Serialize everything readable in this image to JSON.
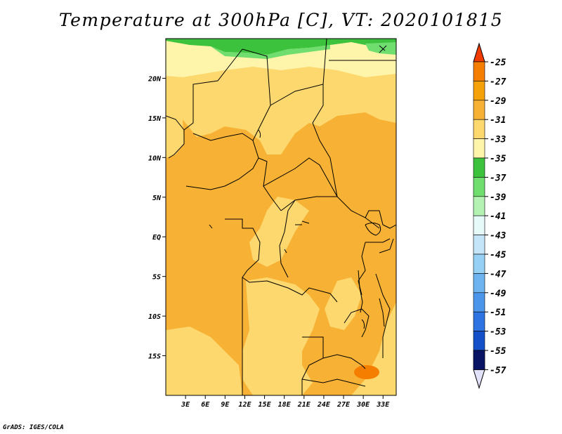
{
  "title": "Temperature at 300hPa [C], VT: 2020101815",
  "footer": "GrADS: IGES/COLA",
  "map": {
    "lon_range": [
      0,
      35
    ],
    "lat_range": [
      -20,
      25
    ],
    "lat_ticks": [
      {
        "value": 20,
        "label": "20N"
      },
      {
        "value": 15,
        "label": "15N"
      },
      {
        "value": 10,
        "label": "10N"
      },
      {
        "value": 5,
        "label": "5N"
      },
      {
        "value": 0,
        "label": "EQ"
      },
      {
        "value": -5,
        "label": "5S"
      },
      {
        "value": -10,
        "label": "10S"
      },
      {
        "value": -15,
        "label": "15S"
      }
    ],
    "lon_ticks": [
      {
        "value": 3,
        "label": "3E"
      },
      {
        "value": 6,
        "label": "6E"
      },
      {
        "value": 9,
        "label": "9E"
      },
      {
        "value": 12,
        "label": "12E"
      },
      {
        "value": 15,
        "label": "15E"
      },
      {
        "value": 18,
        "label": "18E"
      },
      {
        "value": 21,
        "label": "21E"
      },
      {
        "value": 24,
        "label": "24E"
      },
      {
        "value": 27,
        "label": "27E"
      },
      {
        "value": 30,
        "label": "30E"
      },
      {
        "value": 33,
        "label": "33E"
      }
    ]
  },
  "colorbar": {
    "levels": [
      {
        "label": "-25",
        "color": "#f05a00"
      },
      {
        "label": "-27",
        "color": "#f57d00"
      },
      {
        "label": "-29",
        "color": "#f5a20a"
      },
      {
        "label": "-31",
        "color": "#f7b235"
      },
      {
        "label": "-33",
        "color": "#fcd86e"
      },
      {
        "label": "-35",
        "color": "#fef4aa"
      },
      {
        "label": "-37",
        "color": "#3cc23c"
      },
      {
        "label": "-39",
        "color": "#6fde6f"
      },
      {
        "label": "-41",
        "color": "#b3f2b3"
      },
      {
        "label": "-43",
        "color": "#e6fafa"
      },
      {
        "label": "-45",
        "color": "#c4e5f7"
      },
      {
        "label": "-47",
        "color": "#96d0f5"
      },
      {
        "label": "-49",
        "color": "#6eb4f0"
      },
      {
        "label": "-51",
        "color": "#4b96eb"
      },
      {
        "label": "-53",
        "color": "#2d73e1"
      },
      {
        "label": "-55",
        "color": "#1450c8"
      },
      {
        "label": "-57",
        "color": "#0a2d9b"
      }
    ],
    "top_color": "#f03c00",
    "bottom_color": "#e1e1fa",
    "bottom_fill": "#0a1464"
  }
}
